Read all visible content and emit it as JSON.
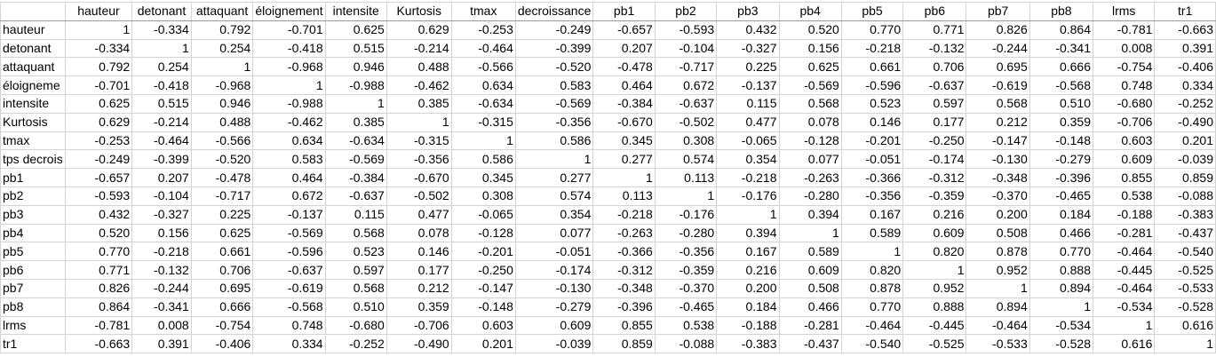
{
  "columns": [
    "hauteur",
    "detonant",
    "attaquant",
    "éloignement",
    "intensite",
    "Kurtosis",
    "tmax",
    "decroissance",
    "pb1",
    "pb2",
    "pb3",
    "pb4",
    "pb5",
    "pb6",
    "pb7",
    "pb8",
    "lrms",
    "tr1"
  ],
  "rows": [
    {
      "label": "hauteur",
      "values": [
        "1",
        "-0.334",
        "0.792",
        "-0.701",
        "0.625",
        "0.629",
        "-0.253",
        "-0.249",
        "-0.657",
        "-0.593",
        "0.432",
        "0.520",
        "0.770",
        "0.771",
        "0.826",
        "0.864",
        "-0.781",
        "-0.663"
      ]
    },
    {
      "label": "detonant",
      "values": [
        "-0.334",
        "1",
        "0.254",
        "-0.418",
        "0.515",
        "-0.214",
        "-0.464",
        "-0.399",
        "0.207",
        "-0.104",
        "-0.327",
        "0.156",
        "-0.218",
        "-0.132",
        "-0.244",
        "-0.341",
        "0.008",
        "0.391"
      ]
    },
    {
      "label": "attaquant",
      "values": [
        "0.792",
        "0.254",
        "1",
        "-0.968",
        "0.946",
        "0.488",
        "-0.566",
        "-0.520",
        "-0.478",
        "-0.717",
        "0.225",
        "0.625",
        "0.661",
        "0.706",
        "0.695",
        "0.666",
        "-0.754",
        "-0.406"
      ]
    },
    {
      "label": "éloigneme",
      "values": [
        "-0.701",
        "-0.418",
        "-0.968",
        "1",
        "-0.988",
        "-0.462",
        "0.634",
        "0.583",
        "0.464",
        "0.672",
        "-0.137",
        "-0.569",
        "-0.596",
        "-0.637",
        "-0.619",
        "-0.568",
        "0.748",
        "0.334"
      ]
    },
    {
      "label": "intensite",
      "values": [
        "0.625",
        "0.515",
        "0.946",
        "-0.988",
        "1",
        "0.385",
        "-0.634",
        "-0.569",
        "-0.384",
        "-0.637",
        "0.115",
        "0.568",
        "0.523",
        "0.597",
        "0.568",
        "0.510",
        "-0.680",
        "-0.252"
      ]
    },
    {
      "label": "Kurtosis",
      "values": [
        "0.629",
        "-0.214",
        "0.488",
        "-0.462",
        "0.385",
        "1",
        "-0.315",
        "-0.356",
        "-0.670",
        "-0.502",
        "0.477",
        "0.078",
        "0.146",
        "0.177",
        "0.212",
        "0.359",
        "-0.706",
        "-0.490"
      ]
    },
    {
      "label": "tmax",
      "values": [
        "-0.253",
        "-0.464",
        "-0.566",
        "0.634",
        "-0.634",
        "-0.315",
        "1",
        "0.586",
        "0.345",
        "0.308",
        "-0.065",
        "-0.128",
        "-0.201",
        "-0.250",
        "-0.147",
        "-0.148",
        "0.603",
        "0.201"
      ]
    },
    {
      "label": "tps decrois",
      "values": [
        "-0.249",
        "-0.399",
        "-0.520",
        "0.583",
        "-0.569",
        "-0.356",
        "0.586",
        "1",
        "0.277",
        "0.574",
        "0.354",
        "0.077",
        "-0.051",
        "-0.174",
        "-0.130",
        "-0.279",
        "0.609",
        "-0.039"
      ]
    },
    {
      "label": "pb1",
      "values": [
        "-0.657",
        "0.207",
        "-0.478",
        "0.464",
        "-0.384",
        "-0.670",
        "0.345",
        "0.277",
        "1",
        "0.113",
        "-0.218",
        "-0.263",
        "-0.366",
        "-0.312",
        "-0.348",
        "-0.396",
        "0.855",
        "0.859"
      ]
    },
    {
      "label": "pb2",
      "values": [
        "-0.593",
        "-0.104",
        "-0.717",
        "0.672",
        "-0.637",
        "-0.502",
        "0.308",
        "0.574",
        "0.113",
        "1",
        "-0.176",
        "-0.280",
        "-0.356",
        "-0.359",
        "-0.370",
        "-0.465",
        "0.538",
        "-0.088"
      ]
    },
    {
      "label": "pb3",
      "values": [
        "0.432",
        "-0.327",
        "0.225",
        "-0.137",
        "0.115",
        "0.477",
        "-0.065",
        "0.354",
        "-0.218",
        "-0.176",
        "1",
        "0.394",
        "0.167",
        "0.216",
        "0.200",
        "0.184",
        "-0.188",
        "-0.383"
      ]
    },
    {
      "label": "pb4",
      "values": [
        "0.520",
        "0.156",
        "0.625",
        "-0.569",
        "0.568",
        "0.078",
        "-0.128",
        "0.077",
        "-0.263",
        "-0.280",
        "0.394",
        "1",
        "0.589",
        "0.609",
        "0.508",
        "0.466",
        "-0.281",
        "-0.437"
      ]
    },
    {
      "label": "pb5",
      "values": [
        "0.770",
        "-0.218",
        "0.661",
        "-0.596",
        "0.523",
        "0.146",
        "-0.201",
        "-0.051",
        "-0.366",
        "-0.356",
        "0.167",
        "0.589",
        "1",
        "0.820",
        "0.878",
        "0.770",
        "-0.464",
        "-0.540"
      ]
    },
    {
      "label": "pb6",
      "values": [
        "0.771",
        "-0.132",
        "0.706",
        "-0.637",
        "0.597",
        "0.177",
        "-0.250",
        "-0.174",
        "-0.312",
        "-0.359",
        "0.216",
        "0.609",
        "0.820",
        "1",
        "0.952",
        "0.888",
        "-0.445",
        "-0.525"
      ]
    },
    {
      "label": "pb7",
      "values": [
        "0.826",
        "-0.244",
        "0.695",
        "-0.619",
        "0.568",
        "0.212",
        "-0.147",
        "-0.130",
        "-0.348",
        "-0.370",
        "0.200",
        "0.508",
        "0.878",
        "0.952",
        "1",
        "0.894",
        "-0.464",
        "-0.533"
      ]
    },
    {
      "label": "pb8",
      "values": [
        "0.864",
        "-0.341",
        "0.666",
        "-0.568",
        "0.510",
        "0.359",
        "-0.148",
        "-0.279",
        "-0.396",
        "-0.465",
        "0.184",
        "0.466",
        "0.770",
        "0.888",
        "0.894",
        "1",
        "-0.534",
        "-0.528"
      ]
    },
    {
      "label": "lrms",
      "values": [
        "-0.781",
        "0.008",
        "-0.754",
        "0.748",
        "-0.680",
        "-0.706",
        "0.603",
        "0.609",
        "0.855",
        "0.538",
        "-0.188",
        "-0.281",
        "-0.464",
        "-0.445",
        "-0.464",
        "-0.534",
        "1",
        "0.616"
      ]
    },
    {
      "label": "tr1",
      "values": [
        "-0.663",
        "0.391",
        "-0.406",
        "0.334",
        "-0.252",
        "-0.490",
        "0.201",
        "-0.039",
        "0.859",
        "-0.088",
        "-0.383",
        "-0.437",
        "-0.540",
        "-0.525",
        "-0.533",
        "-0.528",
        "0.616",
        "1"
      ]
    }
  ]
}
